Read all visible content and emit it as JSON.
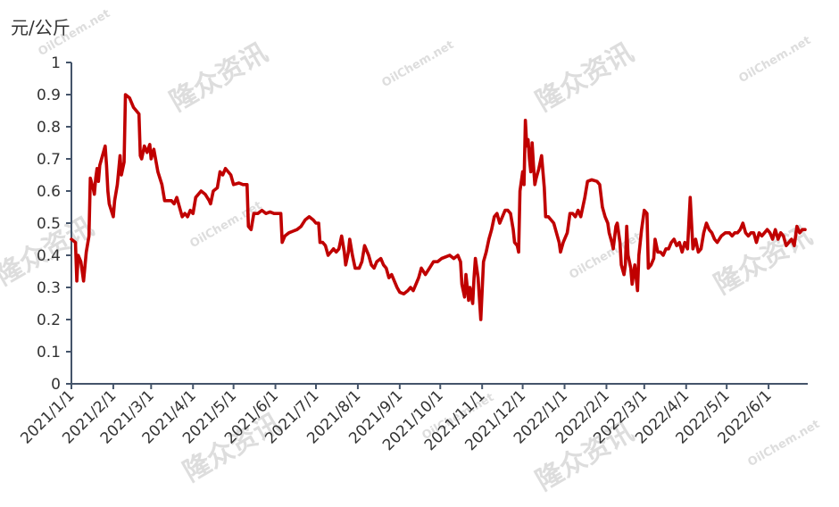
{
  "chart_data": {
    "type": "line",
    "title": "",
    "ylabel": "元/公斤",
    "xlabel": "",
    "ylim": [
      0,
      1
    ],
    "yticks": [
      0,
      0.1,
      0.2,
      0.3,
      0.4,
      0.5,
      0.6,
      0.7,
      0.8,
      0.9,
      1
    ],
    "ytick_labels": [
      "0",
      "0.1",
      "0.2",
      "0.3",
      "0.4",
      "0.5",
      "0.6",
      "0.7",
      "0.8",
      "0.9",
      "1"
    ],
    "xticks": [
      "2021-01-01",
      "2021-02-01",
      "2021-03-01",
      "2021-04-01",
      "2021-05-01",
      "2021-06-01",
      "2021-07-01",
      "2021-08-01",
      "2021-09-01",
      "2021-10-01",
      "2021-11-01",
      "2021-12-01",
      "2022-01-01",
      "2022-02-01",
      "2022-03-01",
      "2022-04-01",
      "2022-05-01",
      "2022-06-01"
    ],
    "xtick_labels": [
      "2021/1/1",
      "2021/2/1",
      "2021/3/1",
      "2021/4/1",
      "2021/5/1",
      "2021/6/1",
      "2021/7/1",
      "2021/8/1",
      "2021/9/1",
      "2021/10/1",
      "2021/11/1",
      "2021/12/1",
      "2022/1/1",
      "2022/2/1",
      "2022/3/1",
      "2022/4/1",
      "2022/5/1",
      "2022/6/1"
    ],
    "xlim": [
      "2021-01-01",
      "2022-06-30"
    ],
    "grid": false,
    "legend": "none",
    "series": [
      {
        "color": "#c00000",
        "points": [
          [
            "2021-01-01",
            0.45
          ],
          [
            "2021-01-04",
            0.44
          ],
          [
            "2021-01-05",
            0.32
          ],
          [
            "2021-01-06",
            0.4
          ],
          [
            "2021-01-08",
            0.38
          ],
          [
            "2021-01-10",
            0.32
          ],
          [
            "2021-01-12",
            0.41
          ],
          [
            "2021-01-14",
            0.46
          ],
          [
            "2021-01-15",
            0.64
          ],
          [
            "2021-01-17",
            0.61
          ],
          [
            "2021-01-18",
            0.59
          ],
          [
            "2021-01-19",
            0.64
          ],
          [
            "2021-01-20",
            0.67
          ],
          [
            "2021-01-21",
            0.63
          ],
          [
            "2021-01-22",
            0.68
          ],
          [
            "2021-01-24",
            0.71
          ],
          [
            "2021-01-26",
            0.74
          ],
          [
            "2021-01-27",
            0.68
          ],
          [
            "2021-01-28",
            0.6
          ],
          [
            "2021-01-29",
            0.56
          ],
          [
            "2021-02-01",
            0.52
          ],
          [
            "2021-02-02",
            0.57
          ],
          [
            "2021-02-04",
            0.62
          ],
          [
            "2021-02-06",
            0.71
          ],
          [
            "2021-02-07",
            0.65
          ],
          [
            "2021-02-09",
            0.69
          ],
          [
            "2021-02-10",
            0.9
          ],
          [
            "2021-02-13",
            0.89
          ],
          [
            "2021-02-16",
            0.86
          ],
          [
            "2021-02-20",
            0.84
          ],
          [
            "2021-02-21",
            0.71
          ],
          [
            "2021-02-22",
            0.7
          ],
          [
            "2021-02-24",
            0.74
          ],
          [
            "2021-02-26",
            0.72
          ],
          [
            "2021-02-28",
            0.745
          ],
          [
            "2021-03-01",
            0.7
          ],
          [
            "2021-03-03",
            0.73
          ],
          [
            "2021-03-06",
            0.66
          ],
          [
            "2021-03-09",
            0.62
          ],
          [
            "2021-03-11",
            0.57
          ],
          [
            "2021-03-16",
            0.57
          ],
          [
            "2021-03-18",
            0.56
          ],
          [
            "2021-03-20",
            0.58
          ],
          [
            "2021-03-22",
            0.55
          ],
          [
            "2021-03-24",
            0.52
          ],
          [
            "2021-03-26",
            0.53
          ],
          [
            "2021-03-28",
            0.52
          ],
          [
            "2021-03-30",
            0.54
          ],
          [
            "2021-04-01",
            0.53
          ],
          [
            "2021-04-03",
            0.58
          ],
          [
            "2021-04-07",
            0.6
          ],
          [
            "2021-04-10",
            0.59
          ],
          [
            "2021-04-13",
            0.57
          ],
          [
            "2021-04-14",
            0.56
          ],
          [
            "2021-04-16",
            0.6
          ],
          [
            "2021-04-19",
            0.61
          ],
          [
            "2021-04-21",
            0.66
          ],
          [
            "2021-04-23",
            0.65
          ],
          [
            "2021-04-25",
            0.67
          ],
          [
            "2021-04-27",
            0.66
          ],
          [
            "2021-04-29",
            0.65
          ],
          [
            "2021-05-01",
            0.62
          ],
          [
            "2021-05-05",
            0.625
          ],
          [
            "2021-05-08",
            0.62
          ],
          [
            "2021-05-11",
            0.62
          ],
          [
            "2021-05-12",
            0.49
          ],
          [
            "2021-05-14",
            0.48
          ],
          [
            "2021-05-16",
            0.53
          ],
          [
            "2021-05-19",
            0.53
          ],
          [
            "2021-05-22",
            0.54
          ],
          [
            "2021-05-25",
            0.53
          ],
          [
            "2021-05-28",
            0.535
          ],
          [
            "2021-05-31",
            0.53
          ],
          [
            "2021-06-03",
            0.53
          ],
          [
            "2021-06-05",
            0.53
          ],
          [
            "2021-06-06",
            0.44
          ],
          [
            "2021-06-08",
            0.46
          ],
          [
            "2021-06-11",
            0.47
          ],
          [
            "2021-06-14",
            0.475
          ],
          [
            "2021-06-17",
            0.48
          ],
          [
            "2021-06-20",
            0.49
          ],
          [
            "2021-06-23",
            0.51
          ],
          [
            "2021-06-26",
            0.52
          ],
          [
            "2021-06-29",
            0.51
          ],
          [
            "2021-07-01",
            0.5
          ],
          [
            "2021-07-03",
            0.5
          ],
          [
            "2021-07-04",
            0.44
          ],
          [
            "2021-07-06",
            0.44
          ],
          [
            "2021-07-08",
            0.43
          ],
          [
            "2021-07-10",
            0.4
          ],
          [
            "2021-07-12",
            0.41
          ],
          [
            "2021-07-14",
            0.42
          ],
          [
            "2021-07-16",
            0.41
          ],
          [
            "2021-07-18",
            0.42
          ],
          [
            "2021-07-20",
            0.46
          ],
          [
            "2021-07-22",
            0.41
          ],
          [
            "2021-07-23",
            0.37
          ],
          [
            "2021-07-25",
            0.41
          ],
          [
            "2021-07-26",
            0.45
          ],
          [
            "2021-07-28",
            0.4
          ],
          [
            "2021-07-30",
            0.36
          ],
          [
            "2021-08-02",
            0.36
          ],
          [
            "2021-08-04",
            0.38
          ],
          [
            "2021-08-06",
            0.43
          ],
          [
            "2021-08-09",
            0.4
          ],
          [
            "2021-08-11",
            0.37
          ],
          [
            "2021-08-13",
            0.36
          ],
          [
            "2021-08-15",
            0.38
          ],
          [
            "2021-08-18",
            0.39
          ],
          [
            "2021-08-20",
            0.37
          ],
          [
            "2021-08-22",
            0.36
          ],
          [
            "2021-08-24",
            0.33
          ],
          [
            "2021-08-26",
            0.34
          ],
          [
            "2021-08-28",
            0.32
          ],
          [
            "2021-08-30",
            0.3
          ],
          [
            "2021-09-01",
            0.285
          ],
          [
            "2021-09-04",
            0.28
          ],
          [
            "2021-09-07",
            0.29
          ],
          [
            "2021-09-09",
            0.3
          ],
          [
            "2021-09-11",
            0.29
          ],
          [
            "2021-09-13",
            0.31
          ],
          [
            "2021-09-15",
            0.33
          ],
          [
            "2021-09-17",
            0.36
          ],
          [
            "2021-09-20",
            0.34
          ],
          [
            "2021-09-23",
            0.36
          ],
          [
            "2021-09-26",
            0.38
          ],
          [
            "2021-09-29",
            0.38
          ],
          [
            "2021-10-02",
            0.39
          ],
          [
            "2021-10-05",
            0.395
          ],
          [
            "2021-10-08",
            0.4
          ],
          [
            "2021-10-11",
            0.39
          ],
          [
            "2021-10-14",
            0.4
          ],
          [
            "2021-10-16",
            0.38
          ],
          [
            "2021-10-17",
            0.31
          ],
          [
            "2021-10-19",
            0.27
          ],
          [
            "2021-10-20",
            0.34
          ],
          [
            "2021-10-22",
            0.26
          ],
          [
            "2021-10-23",
            0.3
          ],
          [
            "2021-10-25",
            0.25
          ],
          [
            "2021-10-26",
            0.33
          ],
          [
            "2021-10-27",
            0.39
          ],
          [
            "2021-10-29",
            0.33
          ],
          [
            "2021-10-31",
            0.2
          ],
          [
            "2021-11-02",
            0.38
          ],
          [
            "2021-11-04",
            0.41
          ],
          [
            "2021-11-06",
            0.45
          ],
          [
            "2021-11-08",
            0.48
          ],
          [
            "2021-11-10",
            0.52
          ],
          [
            "2021-11-12",
            0.53
          ],
          [
            "2021-11-14",
            0.5
          ],
          [
            "2021-11-16",
            0.52
          ],
          [
            "2021-11-18",
            0.54
          ],
          [
            "2021-11-20",
            0.54
          ],
          [
            "2021-11-22",
            0.53
          ],
          [
            "2021-11-24",
            0.48
          ],
          [
            "2021-11-25",
            0.44
          ],
          [
            "2021-11-27",
            0.43
          ],
          [
            "2021-11-28",
            0.41
          ],
          [
            "2021-11-29",
            0.6
          ],
          [
            "2021-12-01",
            0.66
          ],
          [
            "2021-12-02",
            0.62
          ],
          [
            "2021-12-03",
            0.82
          ],
          [
            "2021-12-04",
            0.74
          ],
          [
            "2021-12-05",
            0.76
          ],
          [
            "2021-12-06",
            0.7
          ],
          [
            "2021-12-07",
            0.66
          ],
          [
            "2021-12-08",
            0.75
          ],
          [
            "2021-12-09",
            0.68
          ],
          [
            "2021-12-10",
            0.62
          ],
          [
            "2021-12-11",
            0.64
          ],
          [
            "2021-12-13",
            0.67
          ],
          [
            "2021-12-15",
            0.71
          ],
          [
            "2021-12-17",
            0.61
          ],
          [
            "2021-12-18",
            0.52
          ],
          [
            "2021-12-20",
            0.52
          ],
          [
            "2021-12-22",
            0.51
          ],
          [
            "2021-12-24",
            0.5
          ],
          [
            "2021-12-26",
            0.47
          ],
          [
            "2021-12-28",
            0.44
          ],
          [
            "2021-12-29",
            0.41
          ],
          [
            "2021-12-31",
            0.44
          ],
          [
            "2022-01-03",
            0.47
          ],
          [
            "2022-01-05",
            0.53
          ],
          [
            "2022-01-07",
            0.53
          ],
          [
            "2022-01-09",
            0.52
          ],
          [
            "2022-01-11",
            0.54
          ],
          [
            "2022-01-13",
            0.52
          ],
          [
            "2022-01-16",
            0.58
          ],
          [
            "2022-01-18",
            0.63
          ],
          [
            "2022-01-21",
            0.635
          ],
          [
            "2022-01-25",
            0.63
          ],
          [
            "2022-01-27",
            0.62
          ],
          [
            "2022-01-29",
            0.55
          ],
          [
            "2022-01-31",
            0.52
          ],
          [
            "2022-02-02",
            0.5
          ],
          [
            "2022-02-03",
            0.47
          ],
          [
            "2022-02-05",
            0.44
          ],
          [
            "2022-02-06",
            0.42
          ],
          [
            "2022-02-08",
            0.49
          ],
          [
            "2022-02-09",
            0.5
          ],
          [
            "2022-02-11",
            0.44
          ],
          [
            "2022-02-12",
            0.37
          ],
          [
            "2022-02-14",
            0.34
          ],
          [
            "2022-02-15",
            0.37
          ],
          [
            "2022-02-16",
            0.49
          ],
          [
            "2022-02-17",
            0.4
          ],
          [
            "2022-02-19",
            0.36
          ],
          [
            "2022-02-20",
            0.31
          ],
          [
            "2022-02-22",
            0.37
          ],
          [
            "2022-02-24",
            0.29
          ],
          [
            "2022-02-25",
            0.4
          ],
          [
            "2022-02-27",
            0.48
          ],
          [
            "2022-03-01",
            0.54
          ],
          [
            "2022-03-03",
            0.53
          ],
          [
            "2022-03-04",
            0.36
          ],
          [
            "2022-03-06",
            0.37
          ],
          [
            "2022-03-08",
            0.39
          ],
          [
            "2022-03-09",
            0.45
          ],
          [
            "2022-03-11",
            0.41
          ],
          [
            "2022-03-13",
            0.41
          ],
          [
            "2022-03-15",
            0.4
          ],
          [
            "2022-03-17",
            0.42
          ],
          [
            "2022-03-19",
            0.42
          ],
          [
            "2022-03-21",
            0.44
          ],
          [
            "2022-03-23",
            0.45
          ],
          [
            "2022-03-25",
            0.43
          ],
          [
            "2022-03-27",
            0.44
          ],
          [
            "2022-03-29",
            0.41
          ],
          [
            "2022-03-31",
            0.44
          ],
          [
            "2022-04-02",
            0.42
          ],
          [
            "2022-04-04",
            0.58
          ],
          [
            "2022-04-06",
            0.42
          ],
          [
            "2022-04-08",
            0.45
          ],
          [
            "2022-04-10",
            0.41
          ],
          [
            "2022-04-12",
            0.42
          ],
          [
            "2022-04-14",
            0.47
          ],
          [
            "2022-04-16",
            0.5
          ],
          [
            "2022-04-18",
            0.48
          ],
          [
            "2022-04-20",
            0.47
          ],
          [
            "2022-04-22",
            0.45
          ],
          [
            "2022-04-24",
            0.44
          ],
          [
            "2022-04-27",
            0.46
          ],
          [
            "2022-04-30",
            0.47
          ],
          [
            "2022-05-03",
            0.47
          ],
          [
            "2022-05-05",
            0.46
          ],
          [
            "2022-05-07",
            0.47
          ],
          [
            "2022-05-09",
            0.47
          ],
          [
            "2022-05-11",
            0.48
          ],
          [
            "2022-05-13",
            0.5
          ],
          [
            "2022-05-15",
            0.47
          ],
          [
            "2022-05-17",
            0.46
          ],
          [
            "2022-05-19",
            0.47
          ],
          [
            "2022-05-21",
            0.47
          ],
          [
            "2022-05-23",
            0.44
          ],
          [
            "2022-05-25",
            0.47
          ],
          [
            "2022-05-27",
            0.46
          ],
          [
            "2022-05-29",
            0.47
          ],
          [
            "2022-05-31",
            0.48
          ],
          [
            "2022-06-02",
            0.47
          ],
          [
            "2022-06-04",
            0.45
          ],
          [
            "2022-06-06",
            0.48
          ],
          [
            "2022-06-08",
            0.45
          ],
          [
            "2022-06-10",
            0.47
          ],
          [
            "2022-06-12",
            0.46
          ],
          [
            "2022-06-14",
            0.43
          ],
          [
            "2022-06-16",
            0.44
          ],
          [
            "2022-06-18",
            0.45
          ],
          [
            "2022-06-20",
            0.43
          ],
          [
            "2022-06-22",
            0.49
          ],
          [
            "2022-06-24",
            0.47
          ],
          [
            "2022-06-26",
            0.48
          ],
          [
            "2022-06-28",
            0.48
          ]
        ]
      }
    ]
  },
  "watermark": {
    "cn": "隆众资讯",
    "en": "OilChem.net"
  }
}
